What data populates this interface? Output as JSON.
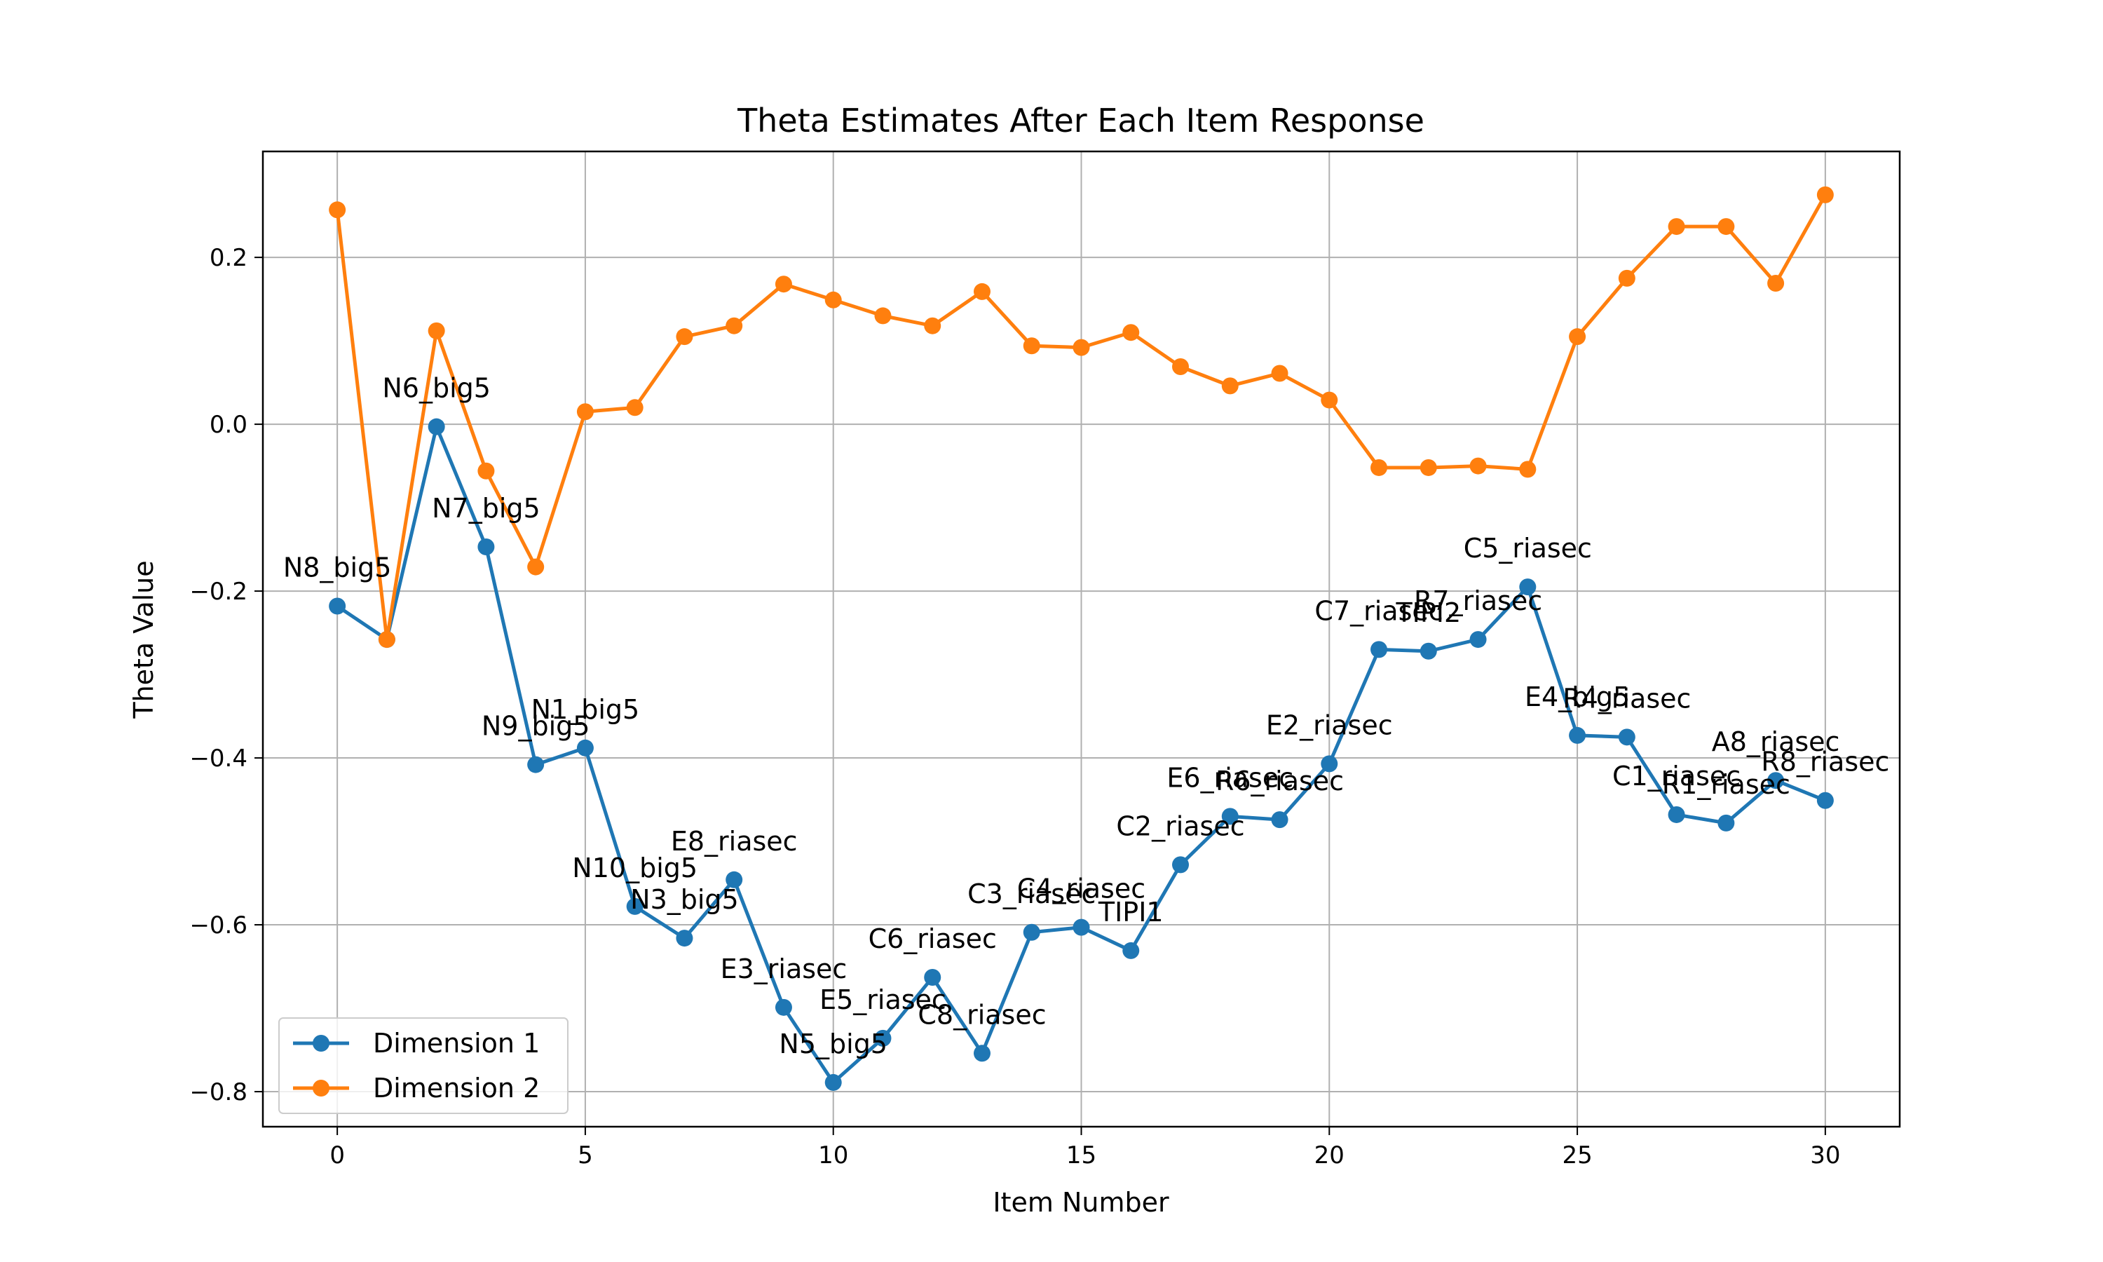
{
  "chart_data": {
    "type": "line",
    "title": "Theta Estimates After Each Item Response",
    "xlabel": "Item Number",
    "ylabel": "Theta Value",
    "xlim": [
      -1.5,
      31.5
    ],
    "ylim": [
      -0.842,
      0.327
    ],
    "xticks": [
      0,
      5,
      10,
      15,
      20,
      25,
      30
    ],
    "yticks": [
      -0.8,
      -0.6,
      -0.4,
      -0.2,
      0.0,
      0.2
    ],
    "xtick_labels": [
      "0",
      "5",
      "10",
      "15",
      "20",
      "25",
      "30"
    ],
    "ytick_labels": [
      "−0.8",
      "−0.6",
      "−0.4",
      "−0.2",
      "0.0",
      "0.2"
    ],
    "grid": true,
    "legend_position": "lower-left",
    "x": [
      0,
      1,
      2,
      3,
      4,
      5,
      6,
      7,
      8,
      9,
      10,
      11,
      12,
      13,
      14,
      15,
      16,
      17,
      18,
      19,
      20,
      21,
      22,
      23,
      24,
      25,
      26,
      27,
      28,
      29,
      30
    ],
    "series": [
      {
        "name": "Dimension 1",
        "color": "#1f77b4",
        "values": [
          -0.218,
          -0.258,
          -0.003,
          -0.147,
          -0.408,
          -0.388,
          -0.578,
          -0.616,
          -0.546,
          -0.699,
          -0.789,
          -0.736,
          -0.663,
          -0.754,
          -0.609,
          -0.603,
          -0.631,
          -0.528,
          -0.47,
          -0.474,
          -0.407,
          -0.27,
          -0.272,
          -0.258,
          -0.195,
          -0.373,
          -0.375,
          -0.468,
          -0.478,
          -0.427,
          -0.451
        ]
      },
      {
        "name": "Dimension 2",
        "color": "#ff7f0e",
        "values": [
          0.257,
          -0.258,
          0.112,
          -0.056,
          -0.171,
          0.015,
          0.02,
          0.105,
          0.118,
          0.168,
          0.149,
          0.13,
          0.118,
          0.159,
          0.094,
          0.092,
          0.11,
          0.069,
          0.046,
          0.061,
          0.029,
          -0.052,
          -0.052,
          -0.05,
          -0.054,
          0.105,
          0.175,
          0.237,
          0.237,
          0.169,
          0.275
        ]
      }
    ],
    "annotations": [
      {
        "x": 0,
        "text": "N8_big5"
      },
      {
        "x": 2,
        "text": "N6_big5"
      },
      {
        "x": 3,
        "text": "N7_big5"
      },
      {
        "x": 4,
        "text": "N9_big5"
      },
      {
        "x": 5,
        "text": "N1_big5"
      },
      {
        "x": 6,
        "text": "N10_big5"
      },
      {
        "x": 7,
        "text": "N3_big5"
      },
      {
        "x": 8,
        "text": "E8_riasec"
      },
      {
        "x": 9,
        "text": "E3_riasec"
      },
      {
        "x": 10,
        "text": "N5_big5"
      },
      {
        "x": 11,
        "text": "E5_riasec"
      },
      {
        "x": 12,
        "text": "C6_riasec"
      },
      {
        "x": 13,
        "text": "C8_riasec"
      },
      {
        "x": 14,
        "text": "C3_riasec"
      },
      {
        "x": 15,
        "text": "C4_riasec"
      },
      {
        "x": 16,
        "text": "TIPI1"
      },
      {
        "x": 17,
        "text": "C2_riasec"
      },
      {
        "x": 18,
        "text": "E6_riasec"
      },
      {
        "x": 19,
        "text": "R6_riasec"
      },
      {
        "x": 20,
        "text": "E2_riasec"
      },
      {
        "x": 21,
        "text": "C7_riasec"
      },
      {
        "x": 22,
        "text": "TIPI2"
      },
      {
        "x": 23,
        "text": "R7_riasec"
      },
      {
        "x": 24,
        "text": "C5_riasec"
      },
      {
        "x": 25,
        "text": "E4_big5"
      },
      {
        "x": 26,
        "text": "R4_riasec"
      },
      {
        "x": 27,
        "text": "C1_riasec"
      },
      {
        "x": 28,
        "text": "R1_riasec"
      },
      {
        "x": 29,
        "text": "A8_riasec"
      },
      {
        "x": 30,
        "text": "R8_riasec"
      }
    ]
  }
}
